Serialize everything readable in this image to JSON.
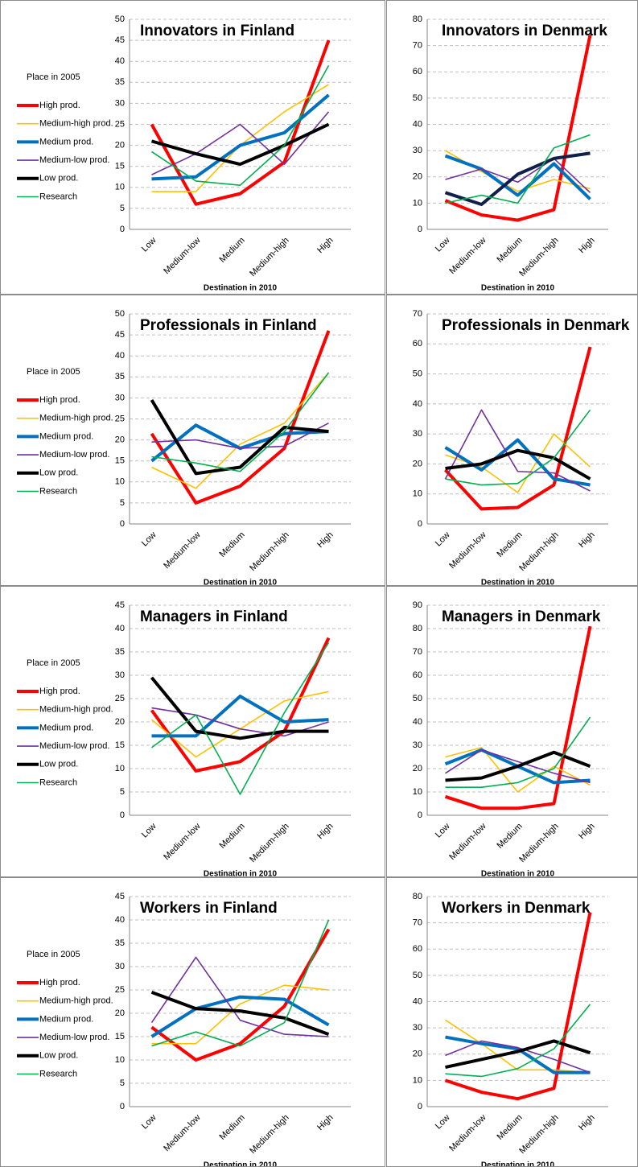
{
  "chart_data": [
    {
      "type": "line",
      "title": "Innovators in Finland",
      "x_label": "Destination in 2010",
      "legend_title": "Place in 2005",
      "legend": "left",
      "grid": true,
      "categories": [
        "Low",
        "Medium-low",
        "Medium",
        "Medium-high",
        "High"
      ],
      "ylim": [
        0,
        50
      ],
      "yticks": [
        0,
        5,
        10,
        15,
        20,
        25,
        30,
        35,
        40,
        45,
        50
      ],
      "series": [
        {
          "name": "High prod.",
          "color": "#ff0000",
          "values": [
            25,
            6,
            8.5,
            16,
            45
          ]
        },
        {
          "name": "Medium-high prod.",
          "color": "#ffc000",
          "values": [
            9,
            9,
            20,
            28,
            34.5
          ]
        },
        {
          "name": "Medium prod.",
          "color": "#0070c0",
          "values": [
            12,
            12.5,
            20,
            23,
            32
          ]
        },
        {
          "name": "Medium-low prod.",
          "color": "#7030a0",
          "values": [
            13,
            18,
            25,
            15.5,
            28
          ]
        },
        {
          "name": "Low prod.",
          "color": "#000000",
          "values": [
            21,
            18,
            15.5,
            20,
            25
          ]
        },
        {
          "name": "Research",
          "color": "#00b050",
          "values": [
            18.5,
            11.5,
            10.5,
            20,
            39
          ]
        }
      ]
    },
    {
      "type": "line",
      "title": "Innovators in Denmark",
      "x_label": "Destination in 2010",
      "grid": true,
      "categories": [
        "Low",
        "Medium-low",
        "Medium",
        "Medium-high",
        "High"
      ],
      "ylim": [
        0,
        80
      ],
      "yticks": [
        0,
        10,
        20,
        30,
        40,
        50,
        60,
        70,
        80
      ],
      "series": [
        {
          "color": "#ff0000",
          "values": [
            11,
            5.5,
            3.5,
            7.5,
            74
          ]
        },
        {
          "color": "#ffc000",
          "values": [
            30,
            22,
            14.5,
            19,
            15.5
          ]
        },
        {
          "color": "#0070c0",
          "values": [
            28,
            23,
            13,
            25,
            11.5
          ]
        },
        {
          "color": "#7030a0",
          "values": [
            19,
            23,
            18,
            27,
            14
          ]
        },
        {
          "color": "#10204a",
          "values": [
            14,
            9.5,
            21,
            27,
            29
          ]
        },
        {
          "color": "#00b050",
          "values": [
            10,
            13,
            10,
            31,
            36
          ]
        }
      ]
    },
    {
      "type": "line",
      "title": "Professionals in Finland",
      "x_label": "Destination in 2010",
      "legend_title": "Place in 2005",
      "legend": "left",
      "grid": true,
      "categories": [
        "Low",
        "Medium-low",
        "Medium",
        "Medium-high",
        "High"
      ],
      "ylim": [
        0,
        50
      ],
      "yticks": [
        0,
        5,
        10,
        15,
        20,
        25,
        30,
        35,
        40,
        45,
        50
      ],
      "series": [
        {
          "name": "High prod.",
          "color": "#ff0000",
          "values": [
            21.5,
            5,
            9,
            18,
            46
          ]
        },
        {
          "name": "Medium-high prod.",
          "color": "#ffc000",
          "values": [
            13.5,
            8.5,
            19,
            24,
            36
          ]
        },
        {
          "name": "Medium prod.",
          "color": "#0070c0",
          "values": [
            15,
            23.5,
            18,
            21.5,
            22
          ]
        },
        {
          "name": "Medium-low prod.",
          "color": "#7030a0",
          "values": [
            19.5,
            20,
            18,
            18.5,
            24
          ]
        },
        {
          "name": "Low prod.",
          "color": "#000000",
          "values": [
            29.5,
            12,
            13.5,
            23,
            22
          ]
        },
        {
          "name": "Research",
          "color": "#00b050",
          "values": [
            16,
            14.5,
            12.5,
            22,
            36
          ]
        }
      ]
    },
    {
      "type": "line",
      "title": "Professionals in Denmark",
      "x_label": "Destination in 2010",
      "grid": true,
      "categories": [
        "Low",
        "Medium-low",
        "Medium",
        "Medium-high",
        "High"
      ],
      "ylim": [
        0,
        70
      ],
      "yticks": [
        0,
        10,
        20,
        30,
        40,
        50,
        60,
        70
      ],
      "series": [
        {
          "color": "#ff0000",
          "values": [
            18,
            5,
            5.5,
            13,
            59
          ]
        },
        {
          "color": "#ffc000",
          "values": [
            23,
            19,
            10.5,
            30,
            19
          ]
        },
        {
          "color": "#0070c0",
          "values": [
            25.5,
            18,
            28,
            15,
            13
          ]
        },
        {
          "color": "#7030a0",
          "values": [
            15,
            38,
            17.5,
            17,
            11
          ]
        },
        {
          "color": "#000000",
          "values": [
            18.5,
            20,
            24.5,
            22,
            15
          ]
        },
        {
          "color": "#00b050",
          "values": [
            15,
            13,
            13.5,
            22,
            38
          ]
        }
      ]
    },
    {
      "type": "line",
      "title": "Managers in Finland",
      "x_label": "Destination in 2010",
      "legend_title": "Place in 2005",
      "legend": "left",
      "grid": true,
      "categories": [
        "Low",
        "Medium-low",
        "Medium",
        "Medium-high",
        "High"
      ],
      "ylim": [
        0,
        45
      ],
      "yticks": [
        0,
        5,
        10,
        15,
        20,
        25,
        30,
        35,
        40,
        45
      ],
      "series": [
        {
          "name": "High prod.",
          "color": "#ff0000",
          "values": [
            22.5,
            9.5,
            11.5,
            18,
            38
          ]
        },
        {
          "name": "Medium-high prod.",
          "color": "#ffc000",
          "values": [
            20.5,
            12.5,
            18.5,
            24.5,
            26.5
          ]
        },
        {
          "name": "Medium prod.",
          "color": "#0070c0",
          "values": [
            17,
            17,
            25.5,
            20,
            20.5
          ]
        },
        {
          "name": "Medium-low prod.",
          "color": "#7030a0",
          "values": [
            23,
            21.5,
            18.5,
            17,
            20
          ]
        },
        {
          "name": "Low prod.",
          "color": "#000000",
          "values": [
            29.5,
            18,
            16.5,
            18,
            18
          ]
        },
        {
          "name": "Research",
          "color": "#00b050",
          "values": [
            14.5,
            21.5,
            4.5,
            22,
            37
          ]
        }
      ]
    },
    {
      "type": "line",
      "title": "Managers in Denmark",
      "x_label": "Destination in 2010",
      "grid": true,
      "categories": [
        "Low",
        "Medium-low",
        "Medium",
        "Medium-high",
        "High"
      ],
      "ylim": [
        0,
        90
      ],
      "yticks": [
        0,
        10,
        20,
        30,
        40,
        50,
        60,
        70,
        80,
        90
      ],
      "series": [
        {
          "color": "#ff0000",
          "values": [
            8,
            3,
            3,
            5,
            81
          ]
        },
        {
          "color": "#ffc000",
          "values": [
            25,
            29,
            10,
            21,
            13
          ]
        },
        {
          "color": "#0070c0",
          "values": [
            22,
            28,
            21,
            14,
            15
          ]
        },
        {
          "color": "#7030a0",
          "values": [
            18,
            28,
            23,
            18,
            14
          ]
        },
        {
          "color": "#000000",
          "values": [
            15,
            16,
            21,
            27,
            21
          ]
        },
        {
          "color": "#00b050",
          "values": [
            12,
            12,
            14,
            20,
            42
          ]
        }
      ]
    },
    {
      "type": "line",
      "title": "Workers in Finland",
      "x_label": "Destination in 2010",
      "legend_title": "Place in 2005",
      "legend": "left",
      "grid": true,
      "categories": [
        "Low",
        "Medium-low",
        "Medium",
        "Medium-high",
        "High"
      ],
      "ylim": [
        0,
        45
      ],
      "yticks": [
        0,
        5,
        10,
        15,
        20,
        25,
        30,
        35,
        40,
        45
      ],
      "series": [
        {
          "name": "High prod.",
          "color": "#ff0000",
          "values": [
            17,
            10,
            13.5,
            21.5,
            38
          ]
        },
        {
          "name": "Medium-high prod.",
          "color": "#ffc000",
          "values": [
            13.5,
            13.5,
            22,
            26,
            25
          ]
        },
        {
          "name": "Medium prod.",
          "color": "#0070c0",
          "values": [
            15,
            21,
            23.5,
            23,
            17.5
          ]
        },
        {
          "name": "Medium-low prod.",
          "color": "#7030a0",
          "values": [
            18,
            32,
            18.5,
            15.5,
            15
          ]
        },
        {
          "name": "Low prod.",
          "color": "#000000",
          "values": [
            24.5,
            21,
            20.5,
            19,
            15.5
          ]
        },
        {
          "name": "Research",
          "color": "#00b050",
          "values": [
            13,
            16,
            13,
            18,
            40
          ]
        }
      ]
    },
    {
      "type": "line",
      "title": "Workers in Denmark",
      "x_label": "Destination in 2010",
      "grid": true,
      "categories": [
        "Low",
        "Medium-low",
        "Medium",
        "Medium-high",
        "High"
      ],
      "ylim": [
        0,
        80
      ],
      "yticks": [
        0,
        10,
        20,
        30,
        40,
        50,
        60,
        70,
        80
      ],
      "series": [
        {
          "color": "#ff0000",
          "values": [
            10,
            5.5,
            3,
            7,
            74
          ]
        },
        {
          "color": "#ffc000",
          "values": [
            33,
            24,
            14,
            14,
            13
          ]
        },
        {
          "color": "#0070c0",
          "values": [
            26.5,
            24,
            22,
            13,
            13
          ]
        },
        {
          "color": "#7030a0",
          "values": [
            19.5,
            25,
            22.5,
            18,
            13
          ]
        },
        {
          "color": "#000000",
          "values": [
            15,
            18,
            21,
            25,
            20.5
          ]
        },
        {
          "color": "#00b050",
          "values": [
            12.5,
            11.5,
            14.5,
            22,
            39
          ]
        }
      ]
    }
  ]
}
